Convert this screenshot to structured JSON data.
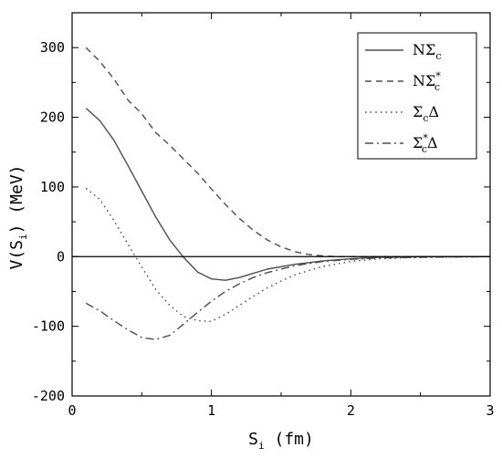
{
  "chart_data": {
    "type": "line",
    "title": "",
    "xlabel": "S",
    "xlabel_sub": "i",
    "xlabel_unit": " (fm)",
    "ylabel": "V(S",
    "ylabel_sub": "i",
    "ylabel_unit": ") (MeV)",
    "xlim": [
      0,
      3
    ],
    "ylim": [
      -200,
      350
    ],
    "xticks": [
      0,
      1,
      2,
      3
    ],
    "xtick_labels": [
      "0",
      "1",
      "2",
      "3"
    ],
    "yticks": [
      -200,
      -100,
      0,
      100,
      200,
      300
    ],
    "ytick_labels": [
      "-200",
      "-100",
      "0",
      "100",
      "200",
      "300"
    ],
    "grid": false,
    "zero_line": true,
    "legend_position": "top-right",
    "series": [
      {
        "name": "NΣc",
        "legend_main": "NΣ",
        "legend_sub": "c",
        "legend_sup": "",
        "legend_tail": "",
        "style": "solid",
        "color": "#4d4d4d",
        "x": [
          0.1,
          0.2,
          0.3,
          0.4,
          0.5,
          0.6,
          0.7,
          0.8,
          0.9,
          1.0,
          1.1,
          1.2,
          1.3,
          1.4,
          1.6,
          1.8,
          2.0,
          2.2,
          2.5,
          3.0
        ],
        "y": [
          213,
          195,
          167,
          131,
          94,
          57,
          24,
          -1,
          -22,
          -32,
          -34,
          -30,
          -24,
          -18,
          -11,
          -6,
          -3,
          -1,
          0,
          0
        ]
      },
      {
        "name": "NΣc*",
        "legend_main": "NΣ",
        "legend_sub": "c",
        "legend_sup": "*",
        "legend_tail": "",
        "style": "dashed",
        "color": "#4d4d4d",
        "x": [
          0.1,
          0.2,
          0.3,
          0.4,
          0.5,
          0.6,
          0.7,
          0.8,
          0.9,
          1.0,
          1.1,
          1.2,
          1.3,
          1.4,
          1.5,
          1.6,
          1.7,
          1.8,
          1.9,
          2.0,
          2.2,
          2.5,
          3.0
        ],
        "y": [
          300,
          280,
          255,
          225,
          205,
          178,
          160,
          140,
          120,
          97,
          75,
          55,
          38,
          24,
          14,
          7,
          3,
          1,
          0,
          0,
          0,
          0,
          0
        ]
      },
      {
        "name": "ΣcΔ",
        "legend_main": "Σ",
        "legend_sub": "c",
        "legend_sup": "",
        "legend_tail": "Δ",
        "style": "dotted",
        "color": "#4d4d4d",
        "x": [
          0.1,
          0.2,
          0.3,
          0.4,
          0.5,
          0.6,
          0.7,
          0.8,
          0.9,
          1.0,
          1.1,
          1.2,
          1.3,
          1.4,
          1.5,
          1.6,
          1.8,
          2.0,
          2.2,
          2.5,
          3.0
        ],
        "y": [
          98,
          82,
          52,
          18,
          -15,
          -47,
          -70,
          -86,
          -92,
          -93,
          -83,
          -70,
          -57,
          -45,
          -35,
          -26,
          -14,
          -7,
          -3,
          -1,
          0
        ]
      },
      {
        "name": "Σc*Δ",
        "legend_main": "Σ",
        "legend_sub": "c",
        "legend_sup": "*",
        "legend_tail": "Δ",
        "style": "dashdot",
        "color": "#4d4d4d",
        "x": [
          0.1,
          0.2,
          0.3,
          0.4,
          0.5,
          0.6,
          0.7,
          0.8,
          0.9,
          1.0,
          1.1,
          1.2,
          1.3,
          1.4,
          1.5,
          1.6,
          1.8,
          2.0,
          2.2,
          2.5,
          3.0
        ],
        "y": [
          -67,
          -78,
          -92,
          -105,
          -116,
          -119,
          -113,
          -97,
          -80,
          -64,
          -50,
          -39,
          -30,
          -23,
          -18,
          -13,
          -7,
          -4,
          -2,
          -1,
          0
        ]
      }
    ]
  }
}
